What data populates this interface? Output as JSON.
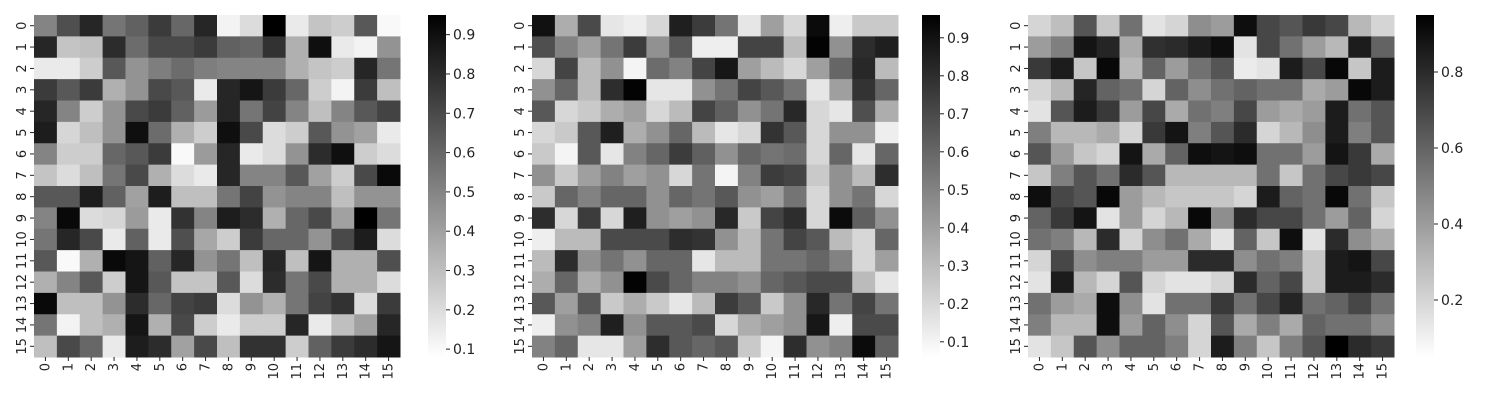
{
  "chart_data": [
    {
      "type": "heatmap",
      "title": "",
      "xlabel": "",
      "ylabel": "",
      "x_categories": [
        "0",
        "1",
        "2",
        "3",
        "4",
        "5",
        "6",
        "7",
        "8",
        "9",
        "10",
        "11",
        "12",
        "13",
        "14",
        "15"
      ],
      "y_categories": [
        "0",
        "1",
        "2",
        "3",
        "4",
        "5",
        "6",
        "7",
        "8",
        "9",
        "10",
        "11",
        "12",
        "13",
        "14",
        "15"
      ],
      "colormap": "Greys",
      "vmin": 0.08,
      "vmax": 0.95,
      "colorbar_ticks": [
        0.1,
        0.2,
        0.3,
        0.4,
        0.5,
        0.6,
        0.7,
        0.8,
        0.9
      ],
      "colorbar_tick_labels": [
        "0.1",
        "0.2",
        "0.3",
        "0.4",
        "0.5",
        "0.6",
        "0.7",
        "0.8",
        "0.9"
      ],
      "values": [
        [
          0.5,
          0.68,
          0.82,
          0.55,
          0.62,
          0.75,
          0.6,
          0.82,
          0.12,
          0.2,
          0.95,
          0.15,
          0.28,
          0.25,
          0.65,
          0.1
        ],
        [
          0.82,
          0.28,
          0.3,
          0.8,
          0.58,
          0.7,
          0.7,
          0.75,
          0.62,
          0.6,
          0.78,
          0.35,
          0.9,
          0.15,
          0.12,
          0.45
        ],
        [
          0.15,
          0.15,
          0.25,
          0.65,
          0.45,
          0.52,
          0.58,
          0.52,
          0.5,
          0.5,
          0.5,
          0.35,
          0.28,
          0.25,
          0.82,
          0.55
        ],
        [
          0.75,
          0.65,
          0.75,
          0.35,
          0.45,
          0.7,
          0.65,
          0.15,
          0.82,
          0.88,
          0.75,
          0.6,
          0.25,
          0.12,
          0.75,
          0.3
        ],
        [
          0.82,
          0.5,
          0.25,
          0.45,
          0.7,
          0.75,
          0.62,
          0.42,
          0.82,
          0.55,
          0.72,
          0.5,
          0.3,
          0.5,
          0.65,
          0.72
        ],
        [
          0.85,
          0.22,
          0.3,
          0.45,
          0.9,
          0.58,
          0.35,
          0.25,
          0.9,
          0.7,
          0.2,
          0.25,
          0.65,
          0.45,
          0.4,
          0.15
        ],
        [
          0.5,
          0.25,
          0.25,
          0.6,
          0.65,
          0.75,
          0.1,
          0.42,
          0.82,
          0.15,
          0.2,
          0.45,
          0.8,
          0.9,
          0.25,
          0.2
        ],
        [
          0.28,
          0.2,
          0.3,
          0.55,
          0.7,
          0.35,
          0.2,
          0.15,
          0.82,
          0.5,
          0.5,
          0.65,
          0.4,
          0.25,
          0.7,
          0.92
        ],
        [
          0.65,
          0.65,
          0.85,
          0.62,
          0.4,
          0.85,
          0.3,
          0.3,
          0.55,
          0.72,
          0.45,
          0.5,
          0.5,
          0.3,
          0.45,
          0.45
        ],
        [
          0.5,
          0.92,
          0.2,
          0.22,
          0.42,
          0.15,
          0.78,
          0.5,
          0.85,
          0.8,
          0.35,
          0.6,
          0.7,
          0.4,
          0.95,
          0.55
        ],
        [
          0.55,
          0.82,
          0.7,
          0.15,
          0.62,
          0.15,
          0.68,
          0.38,
          0.25,
          0.75,
          0.6,
          0.6,
          0.45,
          0.7,
          0.85,
          0.2
        ],
        [
          0.65,
          0.1,
          0.35,
          0.92,
          0.88,
          0.62,
          0.82,
          0.45,
          0.55,
          0.3,
          0.82,
          0.3,
          0.88,
          0.35,
          0.35,
          0.68
        ],
        [
          0.35,
          0.5,
          0.65,
          0.25,
          0.88,
          0.65,
          0.28,
          0.28,
          0.65,
          0.2,
          0.8,
          0.55,
          0.7,
          0.35,
          0.35,
          0.2
        ],
        [
          0.92,
          0.3,
          0.3,
          0.45,
          0.8,
          0.6,
          0.72,
          0.75,
          0.2,
          0.45,
          0.35,
          0.55,
          0.72,
          0.78,
          0.2,
          0.75
        ],
        [
          0.55,
          0.12,
          0.3,
          0.35,
          0.88,
          0.35,
          0.7,
          0.25,
          0.15,
          0.25,
          0.25,
          0.82,
          0.15,
          0.3,
          0.4,
          0.82
        ],
        [
          0.3,
          0.7,
          0.6,
          0.15,
          0.85,
          0.8,
          0.4,
          0.7,
          0.3,
          0.78,
          0.78,
          0.25,
          0.62,
          0.75,
          0.8,
          0.88
        ]
      ]
    },
    {
      "type": "heatmap",
      "title": "",
      "xlabel": "",
      "ylabel": "",
      "x_categories": [
        "0",
        "1",
        "2",
        "3",
        "4",
        "5",
        "6",
        "7",
        "8",
        "9",
        "10",
        "11",
        "12",
        "13",
        "14",
        "15"
      ],
      "y_categories": [
        "0",
        "1",
        "2",
        "3",
        "4",
        "5",
        "6",
        "7",
        "8",
        "9",
        "10",
        "11",
        "12",
        "13",
        "14",
        "15"
      ],
      "colormap": "Greys",
      "vmin": 0.06,
      "vmax": 0.96,
      "colorbar_ticks": [
        0.1,
        0.2,
        0.3,
        0.4,
        0.5,
        0.6,
        0.7,
        0.8,
        0.9
      ],
      "colorbar_tick_labels": [
        "0.1",
        "0.2",
        "0.3",
        "0.4",
        "0.5",
        "0.6",
        "0.7",
        "0.8",
        "0.9"
      ],
      "values": [
        [
          0.9,
          0.35,
          0.7,
          0.15,
          0.12,
          0.2,
          0.85,
          0.75,
          0.55,
          0.15,
          0.4,
          0.2,
          0.92,
          0.12,
          0.25,
          0.25
        ],
        [
          0.68,
          0.5,
          0.4,
          0.55,
          0.75,
          0.45,
          0.65,
          0.12,
          0.12,
          0.72,
          0.72,
          0.3,
          0.95,
          0.45,
          0.8,
          0.85
        ],
        [
          0.2,
          0.72,
          0.3,
          0.45,
          0.1,
          0.58,
          0.5,
          0.72,
          0.88,
          0.4,
          0.3,
          0.2,
          0.4,
          0.6,
          0.82,
          0.3
        ],
        [
          0.45,
          0.6,
          0.3,
          0.8,
          0.95,
          0.15,
          0.15,
          0.45,
          0.55,
          0.72,
          0.65,
          0.55,
          0.15,
          0.4,
          0.78,
          0.6
        ],
        [
          0.65,
          0.2,
          0.25,
          0.35,
          0.4,
          0.2,
          0.3,
          0.72,
          0.62,
          0.45,
          0.55,
          0.82,
          0.2,
          0.15,
          0.68,
          0.35
        ],
        [
          0.2,
          0.25,
          0.65,
          0.85,
          0.35,
          0.45,
          0.6,
          0.3,
          0.15,
          0.2,
          0.78,
          0.65,
          0.2,
          0.45,
          0.45,
          0.12
        ],
        [
          0.25,
          0.1,
          0.65,
          0.15,
          0.5,
          0.6,
          0.75,
          0.62,
          0.45,
          0.6,
          0.55,
          0.58,
          0.2,
          0.6,
          0.15,
          0.6
        ],
        [
          0.45,
          0.25,
          0.4,
          0.5,
          0.4,
          0.45,
          0.2,
          0.55,
          0.1,
          0.5,
          0.75,
          0.72,
          0.25,
          0.45,
          0.3,
          0.8
        ],
        [
          0.25,
          0.6,
          0.5,
          0.6,
          0.6,
          0.45,
          0.6,
          0.55,
          0.65,
          0.45,
          0.4,
          0.55,
          0.2,
          0.45,
          0.55,
          0.2
        ],
        [
          0.8,
          0.2,
          0.75,
          0.2,
          0.85,
          0.45,
          0.4,
          0.45,
          0.82,
          0.25,
          0.72,
          0.8,
          0.2,
          0.92,
          0.62,
          0.45
        ],
        [
          0.12,
          0.3,
          0.3,
          0.7,
          0.7,
          0.7,
          0.8,
          0.78,
          0.45,
          0.3,
          0.55,
          0.72,
          0.65,
          0.3,
          0.2,
          0.6
        ],
        [
          0.3,
          0.8,
          0.45,
          0.55,
          0.45,
          0.6,
          0.6,
          0.15,
          0.3,
          0.3,
          0.55,
          0.55,
          0.6,
          0.5,
          0.2,
          0.4
        ],
        [
          0.35,
          0.6,
          0.35,
          0.45,
          0.95,
          0.7,
          0.6,
          0.5,
          0.5,
          0.45,
          0.6,
          0.65,
          0.7,
          0.7,
          0.3,
          0.15
        ],
        [
          0.65,
          0.4,
          0.65,
          0.25,
          0.35,
          0.25,
          0.15,
          0.3,
          0.75,
          0.65,
          0.25,
          0.45,
          0.82,
          0.55,
          0.72,
          0.55
        ],
        [
          0.12,
          0.45,
          0.5,
          0.85,
          0.45,
          0.65,
          0.65,
          0.7,
          0.2,
          0.35,
          0.4,
          0.45,
          0.88,
          0.12,
          0.7,
          0.7
        ],
        [
          0.5,
          0.6,
          0.15,
          0.15,
          0.4,
          0.8,
          0.65,
          0.6,
          0.65,
          0.25,
          0.1,
          0.8,
          0.45,
          0.5,
          0.92,
          0.62
        ]
      ]
    },
    {
      "type": "heatmap",
      "title": "",
      "xlabel": "",
      "ylabel": "",
      "x_categories": [
        "0",
        "1",
        "2",
        "3",
        "4",
        "5",
        "6",
        "7",
        "8",
        "9",
        "10",
        "11",
        "12",
        "13",
        "14",
        "15"
      ],
      "y_categories": [
        "0",
        "1",
        "2",
        "3",
        "4",
        "5",
        "6",
        "7",
        "8",
        "9",
        "10",
        "11",
        "12",
        "13",
        "14",
        "15"
      ],
      "colormap": "Greys",
      "vmin": 0.05,
      "vmax": 0.95,
      "colorbar_ticks": [
        0.2,
        0.4,
        0.6,
        0.8
      ],
      "colorbar_tick_labels": [
        "0.2",
        "0.4",
        "0.6",
        "0.8"
      ],
      "values": [
        [
          0.2,
          0.28,
          0.65,
          0.25,
          0.55,
          0.15,
          0.2,
          0.45,
          0.4,
          0.9,
          0.7,
          0.65,
          0.75,
          0.7,
          0.3,
          0.2
        ],
        [
          0.4,
          0.5,
          0.88,
          0.82,
          0.35,
          0.78,
          0.8,
          0.85,
          0.9,
          0.15,
          0.7,
          0.55,
          0.4,
          0.3,
          0.85,
          0.6
        ],
        [
          0.75,
          0.85,
          0.25,
          0.92,
          0.3,
          0.6,
          0.4,
          0.55,
          0.65,
          0.12,
          0.15,
          0.85,
          0.7,
          0.92,
          0.25,
          0.85
        ],
        [
          0.2,
          0.3,
          0.82,
          0.6,
          0.55,
          0.2,
          0.6,
          0.45,
          0.55,
          0.6,
          0.55,
          0.55,
          0.35,
          0.4,
          0.92,
          0.85
        ],
        [
          0.15,
          0.65,
          0.85,
          0.75,
          0.4,
          0.7,
          0.35,
          0.55,
          0.5,
          0.7,
          0.4,
          0.35,
          0.4,
          0.85,
          0.55,
          0.65
        ],
        [
          0.5,
          0.3,
          0.3,
          0.35,
          0.2,
          0.75,
          0.88,
          0.5,
          0.65,
          0.8,
          0.2,
          0.3,
          0.45,
          0.85,
          0.5,
          0.65
        ],
        [
          0.65,
          0.4,
          0.25,
          0.2,
          0.88,
          0.35,
          0.6,
          0.9,
          0.88,
          0.9,
          0.55,
          0.55,
          0.4,
          0.88,
          0.75,
          0.35
        ],
        [
          0.25,
          0.5,
          0.65,
          0.55,
          0.8,
          0.65,
          0.3,
          0.3,
          0.3,
          0.3,
          0.55,
          0.25,
          0.55,
          0.7,
          0.75,
          0.7
        ],
        [
          0.9,
          0.7,
          0.65,
          0.92,
          0.4,
          0.3,
          0.25,
          0.25,
          0.25,
          0.2,
          0.85,
          0.6,
          0.55,
          0.92,
          0.55,
          0.25
        ],
        [
          0.6,
          0.75,
          0.88,
          0.15,
          0.4,
          0.2,
          0.3,
          0.92,
          0.45,
          0.8,
          0.7,
          0.7,
          0.55,
          0.4,
          0.6,
          0.2
        ],
        [
          0.55,
          0.5,
          0.3,
          0.8,
          0.2,
          0.45,
          0.55,
          0.35,
          0.15,
          0.6,
          0.25,
          0.9,
          0.15,
          0.8,
          0.45,
          0.35
        ],
        [
          0.2,
          0.7,
          0.45,
          0.5,
          0.5,
          0.4,
          0.4,
          0.8,
          0.8,
          0.45,
          0.55,
          0.5,
          0.25,
          0.85,
          0.88,
          0.7
        ],
        [
          0.15,
          0.85,
          0.3,
          0.2,
          0.65,
          0.2,
          0.15,
          0.15,
          0.2,
          0.8,
          0.6,
          0.7,
          0.25,
          0.85,
          0.85,
          0.8
        ],
        [
          0.55,
          0.4,
          0.35,
          0.9,
          0.45,
          0.15,
          0.55,
          0.55,
          0.75,
          0.55,
          0.7,
          0.82,
          0.55,
          0.6,
          0.7,
          0.55
        ],
        [
          0.5,
          0.3,
          0.3,
          0.9,
          0.4,
          0.6,
          0.45,
          0.2,
          0.65,
          0.35,
          0.5,
          0.35,
          0.6,
          0.55,
          0.55,
          0.45
        ],
        [
          0.15,
          0.25,
          0.65,
          0.45,
          0.6,
          0.6,
          0.5,
          0.2,
          0.85,
          0.5,
          0.25,
          0.5,
          0.65,
          0.95,
          0.8,
          0.75
        ]
      ]
    }
  ]
}
